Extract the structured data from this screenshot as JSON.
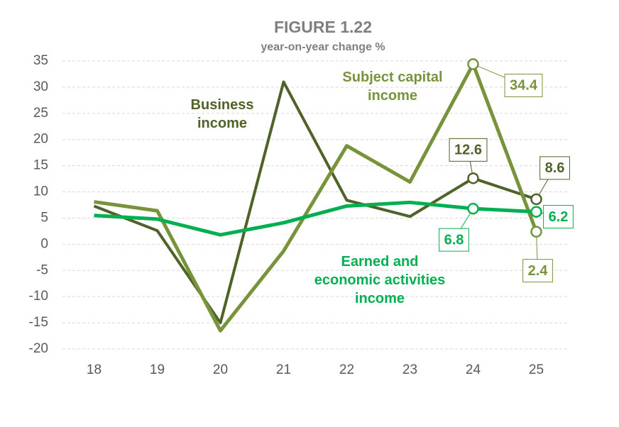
{
  "chart_data": {
    "type": "line",
    "title": "FIGURE 1.22",
    "subtitle": "year-on-year change %",
    "categories": [
      "18",
      "19",
      "20",
      "21",
      "22",
      "23",
      "24",
      "25"
    ],
    "ylim": [
      -20,
      35
    ],
    "yticks": [
      -20,
      -15,
      -10,
      -5,
      0,
      5,
      10,
      15,
      20,
      25,
      30,
      35
    ],
    "grid": true,
    "series": [
      {
        "name": "Business income",
        "color": "#4f6228",
        "values": [
          7.3,
          2.6,
          -15,
          31,
          8.4,
          5.3,
          12.6,
          8.6
        ]
      },
      {
        "name": "Subject capital income",
        "color": "#77933c",
        "values": [
          8.1,
          6.4,
          -16.5,
          -1.3,
          18.8,
          11.9,
          34.4,
          2.4
        ]
      },
      {
        "name": "Earned and economic activities income",
        "color": "#00b050",
        "values": [
          5.5,
          4.8,
          1.8,
          4.1,
          7.3,
          8.0,
          6.8,
          6.2
        ]
      }
    ]
  }
}
